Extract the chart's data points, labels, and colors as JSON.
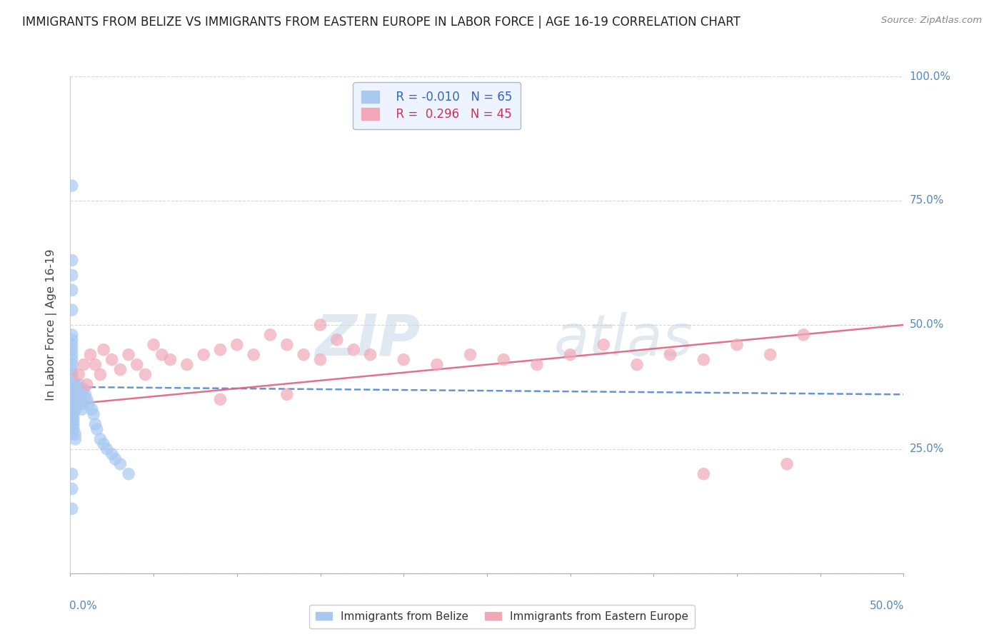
{
  "title": "IMMIGRANTS FROM BELIZE VS IMMIGRANTS FROM EASTERN EUROPE IN LABOR FORCE | AGE 16-19 CORRELATION CHART",
  "source": "Source: ZipAtlas.com",
  "ylabel": "In Labor Force | Age 16-19",
  "xlim": [
    0.0,
    0.5
  ],
  "ylim": [
    0.0,
    1.0
  ],
  "belize_r": -0.01,
  "belize_n": 65,
  "eastern_r": 0.296,
  "eastern_n": 45,
  "belize_color": "#a8c8f0",
  "eastern_color": "#f0a8b8",
  "belize_line_color": "#5588cc",
  "eastern_line_color": "#e06080",
  "watermark_zip": "ZIP",
  "watermark_atlas": "atlas",
  "right_labels": {
    "1.0": "100.0%",
    "0.75": "75.0%",
    "0.5": "50.0%",
    "0.25": "25.0%"
  },
  "belize_x": [
    0.001,
    0.001,
    0.001,
    0.001,
    0.001,
    0.001,
    0.001,
    0.001,
    0.001,
    0.001,
    0.001,
    0.001,
    0.001,
    0.001,
    0.001,
    0.001,
    0.001,
    0.001,
    0.001,
    0.001,
    0.002,
    0.002,
    0.002,
    0.002,
    0.002,
    0.002,
    0.002,
    0.002,
    0.002,
    0.002,
    0.003,
    0.003,
    0.003,
    0.003,
    0.003,
    0.003,
    0.003,
    0.003,
    0.004,
    0.004,
    0.004,
    0.004,
    0.005,
    0.005,
    0.005,
    0.005,
    0.006,
    0.006,
    0.007,
    0.007,
    0.008,
    0.009,
    0.01,
    0.011,
    0.013,
    0.014,
    0.015,
    0.016,
    0.018,
    0.02,
    0.022,
    0.025,
    0.027,
    0.03,
    0.035
  ],
  "belize_y": [
    0.35,
    0.36,
    0.37,
    0.38,
    0.39,
    0.4,
    0.41,
    0.42,
    0.43,
    0.44,
    0.33,
    0.32,
    0.31,
    0.3,
    0.45,
    0.46,
    0.47,
    0.48,
    0.29,
    0.28,
    0.36,
    0.37,
    0.38,
    0.35,
    0.34,
    0.33,
    0.32,
    0.31,
    0.3,
    0.29,
    0.38,
    0.37,
    0.36,
    0.35,
    0.34,
    0.33,
    0.28,
    0.27,
    0.37,
    0.36,
    0.35,
    0.34,
    0.38,
    0.37,
    0.36,
    0.35,
    0.36,
    0.35,
    0.34,
    0.33,
    0.37,
    0.36,
    0.35,
    0.34,
    0.33,
    0.32,
    0.3,
    0.29,
    0.27,
    0.26,
    0.25,
    0.24,
    0.23,
    0.22,
    0.2
  ],
  "belize_y_outliers": [
    0.78,
    0.63,
    0.6,
    0.57,
    0.53,
    0.2,
    0.17,
    0.13
  ],
  "belize_x_outliers": [
    0.001,
    0.001,
    0.001,
    0.001,
    0.001,
    0.001,
    0.001,
    0.001
  ],
  "eastern_x": [
    0.005,
    0.008,
    0.01,
    0.012,
    0.015,
    0.018,
    0.02,
    0.025,
    0.03,
    0.035,
    0.04,
    0.045,
    0.05,
    0.055,
    0.06,
    0.07,
    0.08,
    0.09,
    0.1,
    0.11,
    0.12,
    0.13,
    0.14,
    0.15,
    0.16,
    0.17,
    0.18,
    0.2,
    0.22,
    0.24,
    0.26,
    0.28,
    0.3,
    0.32,
    0.34,
    0.36,
    0.38,
    0.4,
    0.42,
    0.44,
    0.15,
    0.09,
    0.13,
    0.43,
    0.38
  ],
  "eastern_y": [
    0.4,
    0.42,
    0.38,
    0.44,
    0.42,
    0.4,
    0.45,
    0.43,
    0.41,
    0.44,
    0.42,
    0.4,
    0.46,
    0.44,
    0.43,
    0.42,
    0.44,
    0.45,
    0.46,
    0.44,
    0.48,
    0.46,
    0.44,
    0.43,
    0.47,
    0.45,
    0.44,
    0.43,
    0.42,
    0.44,
    0.43,
    0.42,
    0.44,
    0.46,
    0.42,
    0.44,
    0.43,
    0.46,
    0.44,
    0.48,
    0.5,
    0.35,
    0.36,
    0.22,
    0.2
  ]
}
